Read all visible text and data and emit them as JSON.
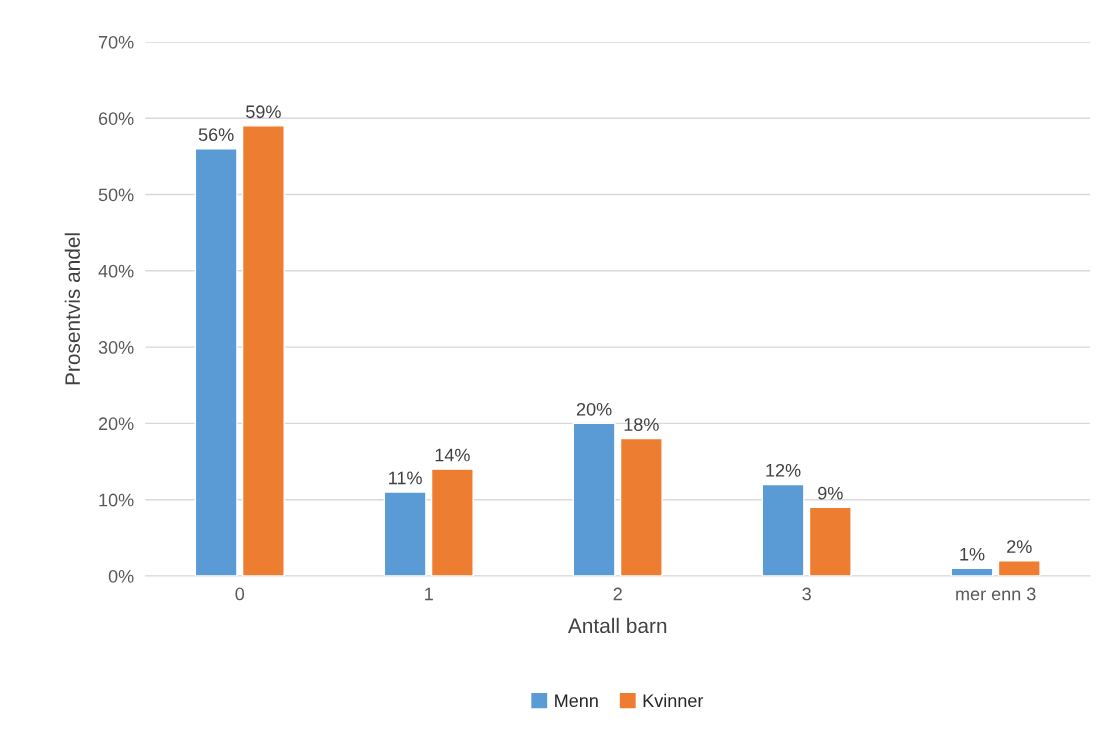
{
  "chart_data": {
    "type": "bar",
    "xlabel": "Antall barn",
    "ylabel": "Prosentvis andel",
    "categories": [
      "0",
      "1",
      "2",
      "3",
      "mer enn 3"
    ],
    "series": [
      {
        "name": "Menn",
        "color": "#5b9bd5",
        "values": [
          56,
          11,
          20,
          12,
          1
        ],
        "value_labels": [
          "56%",
          "11%",
          "20%",
          "12%",
          "1%"
        ]
      },
      {
        "name": "Kvinner",
        "color": "#ed7d31",
        "values": [
          59,
          14,
          18,
          9,
          2
        ],
        "value_labels": [
          "59%",
          "14%",
          "18%",
          "9%",
          "2%"
        ]
      }
    ],
    "ylim": [
      0,
      70
    ],
    "yticks": [
      {
        "value": 0,
        "label": "0%"
      },
      {
        "value": 10,
        "label": "10%"
      },
      {
        "value": 20,
        "label": "20%"
      },
      {
        "value": 30,
        "label": "30%"
      },
      {
        "value": 40,
        "label": "40%"
      },
      {
        "value": 50,
        "label": "50%"
      },
      {
        "value": 60,
        "label": "60%"
      },
      {
        "value": 70,
        "label": "70%"
      }
    ],
    "grid": "y",
    "legend": "bottom"
  }
}
